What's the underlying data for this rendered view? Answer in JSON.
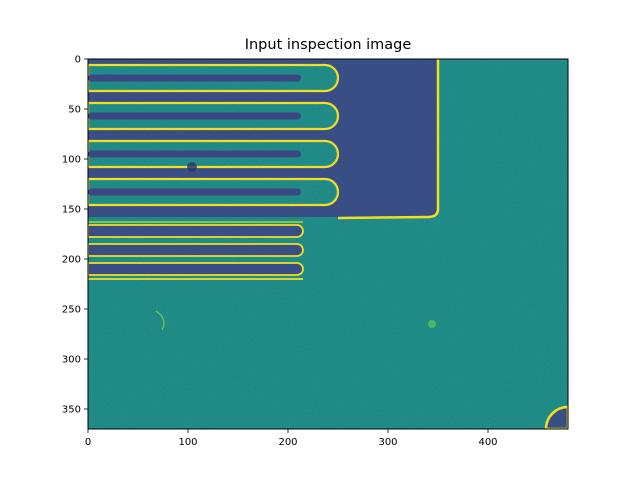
{
  "figure": {
    "title": "Input inspection image",
    "colormap": "viridis"
  },
  "chart_data": {
    "type": "heatmap",
    "title": "Input inspection image",
    "xlabel": "",
    "ylabel": "",
    "xlim": [
      0,
      480
    ],
    "ylim": [
      370,
      0
    ],
    "x_ticks": [
      0,
      100,
      200,
      300,
      400
    ],
    "y_ticks": [
      0,
      50,
      100,
      150,
      200,
      250,
      300,
      350
    ],
    "grid": false,
    "legend": "none",
    "colors": {
      "background": "#21918c",
      "etched_region": "#3b528b",
      "edge_highlight": "#fde725",
      "bright_edge": "#b5de2b"
    },
    "features": {
      "upper_fingers": [
        {
          "y_top": 6,
          "y_bottom": 32,
          "x_end": 250
        },
        {
          "y_top": 44,
          "y_bottom": 70,
          "x_end": 250
        },
        {
          "y_top": 82,
          "y_bottom": 108,
          "x_end": 250
        },
        {
          "y_top": 120,
          "y_bottom": 146,
          "x_end": 250
        }
      ],
      "upper_trenches_y": [
        19,
        57,
        95,
        133
      ],
      "lower_trenches": [
        {
          "y": 172,
          "x_end": 215
        },
        {
          "y": 191,
          "x_end": 215
        },
        {
          "y": 210,
          "x_end": 215
        }
      ],
      "etched_block": {
        "x0": 0,
        "x1": 350,
        "y0": 0,
        "y1": 158
      },
      "lower_plate": {
        "x0": 0,
        "x1": 215,
        "y0": 162,
        "y1": 220
      },
      "corner_arc": {
        "cx": 480,
        "cy": 370,
        "r": 22
      },
      "spots": [
        {
          "x": 104,
          "y": 108,
          "r": 5
        },
        {
          "x": 344,
          "y": 265,
          "r": 4
        }
      ]
    }
  }
}
